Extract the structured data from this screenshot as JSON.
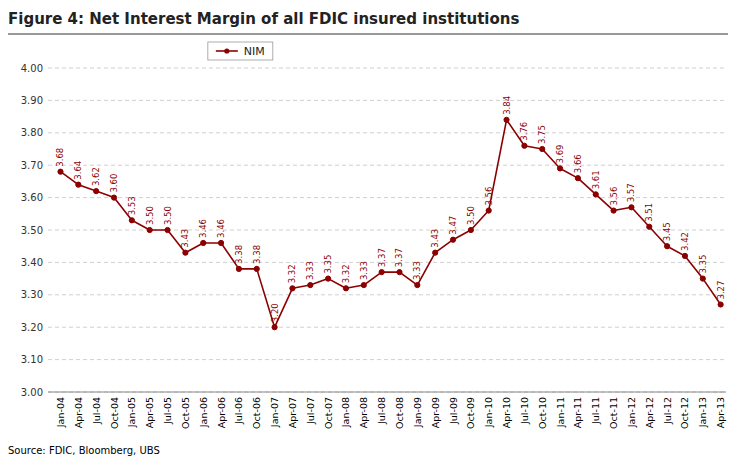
{
  "chart_data": {
    "type": "line",
    "title": "Figure 4: Net Interest Margin of all FDIC insured institutions",
    "annotations": [
      "Source: FDIC, Bloomberg, UBS"
    ],
    "categories": [
      "Jan-04",
      "Apr-04",
      "Jul-04",
      "Oct-04",
      "Jan-05",
      "Apr-05",
      "Jul-05",
      "Oct-05",
      "Jan-06",
      "Apr-06",
      "Jul-06",
      "Oct-06",
      "Jan-07",
      "Apr-07",
      "Jul-07",
      "Oct-07",
      "Jan-08",
      "Apr-08",
      "Jul-08",
      "Oct-08",
      "Jan-09",
      "Apr-09",
      "Jul-09",
      "Oct-09",
      "Jan-10",
      "Apr-10",
      "Jul-10",
      "Oct-10",
      "Jan-11",
      "Apr-11",
      "Jul-11",
      "Oct-11",
      "Jan-12",
      "Apr-12",
      "Jul-12",
      "Oct-12",
      "Jan-13",
      "Apr-13"
    ],
    "series": [
      {
        "name": "NIM",
        "color": "#8B0000",
        "marker": "circle",
        "line_style": "solid",
        "values": [
          3.68,
          3.64,
          3.62,
          3.6,
          3.53,
          3.5,
          3.5,
          3.43,
          3.46,
          3.46,
          3.38,
          3.38,
          3.2,
          3.32,
          3.33,
          3.35,
          3.32,
          3.33,
          3.37,
          3.37,
          3.33,
          3.43,
          3.47,
          3.5,
          3.56,
          3.84,
          3.76,
          3.75,
          3.69,
          3.66,
          3.61,
          3.56,
          3.57,
          3.51,
          3.45,
          3.42,
          3.35,
          3.27
        ],
        "value_labels": [
          "3.68",
          "3.64",
          "3.62",
          "3.60",
          "3.53",
          "3.50",
          "3.50",
          "3.43",
          "3.46",
          "3.46",
          "3.38",
          "3.38",
          "3.20",
          "3.32",
          "3.33",
          "3.35",
          "3.32",
          "3.33",
          "3.37",
          "3.37",
          "3.33",
          "3.43",
          "3.47",
          "3.50",
          "3.56",
          "3.84",
          "3.76",
          "3.75",
          "3.69",
          "3.66",
          "3.61",
          "3.56",
          "3.57",
          "3.51",
          "3.45",
          "3.42",
          "3.35",
          "3.27"
        ]
      }
    ],
    "ylim": [
      3.0,
      4.0
    ],
    "yticks": [
      {
        "value": 3.0,
        "label": "3.00"
      },
      {
        "value": 3.1,
        "label": "3.10"
      },
      {
        "value": 3.2,
        "label": "3.20"
      },
      {
        "value": 3.3,
        "label": "3.30"
      },
      {
        "value": 3.4,
        "label": "3.40"
      },
      {
        "value": 3.5,
        "label": "3.50"
      },
      {
        "value": 3.6,
        "label": "3.60"
      },
      {
        "value": 3.7,
        "label": "3.70"
      },
      {
        "value": 3.8,
        "label": "3.80"
      },
      {
        "value": 3.9,
        "label": "3.90"
      },
      {
        "value": 4.0,
        "label": "4.00"
      }
    ],
    "grid": true,
    "legend": "top",
    "data_labels": true
  }
}
